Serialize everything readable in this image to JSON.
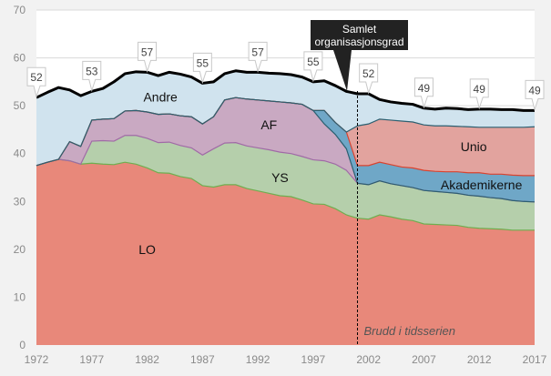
{
  "chart_data": {
    "type": "area",
    "stacked": true,
    "title": "",
    "xlabel": "",
    "ylabel": "",
    "xlim": [
      1972,
      2017
    ],
    "ylim": [
      0,
      70
    ],
    "yticks": [
      0,
      10,
      20,
      30,
      40,
      50,
      60,
      70
    ],
    "xticks": [
      1972,
      1977,
      1982,
      1987,
      1992,
      1997,
      2002,
      2007,
      2012,
      2017
    ],
    "grid": true,
    "x": [
      1972,
      1973,
      1974,
      1975,
      1976,
      1977,
      1978,
      1979,
      1980,
      1981,
      1982,
      1983,
      1984,
      1985,
      1986,
      1987,
      1988,
      1989,
      1990,
      1991,
      1992,
      1993,
      1994,
      1995,
      1996,
      1997,
      1998,
      1999,
      2000,
      2001,
      2002,
      2003,
      2004,
      2005,
      2006,
      2007,
      2008,
      2009,
      2010,
      2011,
      2012,
      2013,
      2014,
      2015,
      2016,
      2017
    ],
    "series": [
      {
        "name": "LO",
        "color": "#e8887a",
        "line": "#6fae4f",
        "values": [
          37.5,
          38.2,
          38.8,
          38.5,
          37.8,
          38.0,
          37.8,
          37.7,
          38.2,
          37.8,
          37.0,
          36.0,
          35.9,
          35.2,
          34.8,
          33.3,
          33.0,
          33.5,
          33.5,
          32.7,
          32.2,
          31.7,
          31.2,
          31.0,
          30.3,
          29.5,
          29.4,
          28.5,
          27.2,
          26.5,
          26.3,
          27.2,
          26.8,
          26.3,
          26.0,
          25.3,
          25.2,
          25.1,
          25.0,
          24.6,
          24.4,
          24.3,
          24.2,
          24.0,
          24.0,
          24.0
        ]
      },
      {
        "name": "YS",
        "color": "#b5cfab",
        "line": "#a06aa6",
        "values": [
          0,
          0,
          0,
          0,
          0,
          4.6,
          4.9,
          4.9,
          5.6,
          6.0,
          6.2,
          6.3,
          6.5,
          6.5,
          6.4,
          6.4,
          8.0,
          8.7,
          8.8,
          8.9,
          9.0,
          9.1,
          9.1,
          9.0,
          9.1,
          9.2,
          9.1,
          9.3,
          9.3,
          7.3,
          7.2,
          7.1,
          6.9,
          7.0,
          6.9,
          7.0,
          6.9,
          6.8,
          6.7,
          6.7,
          6.7,
          6.5,
          6.4,
          6.2,
          6.0,
          5.9
        ]
      },
      {
        "name": "AF",
        "color": "#c9a9c2",
        "line": "#2b5f70",
        "values": [
          0,
          0,
          0,
          4.0,
          3.7,
          4.4,
          4.5,
          4.7,
          5.1,
          5.2,
          5.5,
          5.9,
          5.9,
          6.2,
          6.5,
          6.5,
          6.7,
          9.0,
          9.4,
          9.8,
          10.0,
          10.2,
          10.5,
          10.6,
          10.9,
          10.3,
          7.7,
          6.2,
          4.5,
          0,
          0,
          0,
          0,
          0,
          0,
          0,
          0,
          0,
          0,
          0,
          0,
          0,
          0,
          0,
          0,
          0
        ]
      },
      {
        "name": "Akademikerne",
        "color": "#6fa7c7",
        "line": "#d9432f",
        "values": [
          0,
          0,
          0,
          0,
          0,
          0,
          0,
          0,
          0,
          0,
          0,
          0,
          0,
          0,
          0,
          0,
          0,
          0,
          0,
          0,
          0,
          0,
          0,
          0,
          0,
          0,
          2.8,
          2.5,
          3.5,
          3.7,
          4.0,
          3.9,
          4.0,
          3.9,
          4.1,
          4.2,
          4.2,
          4.3,
          4.5,
          4.7,
          4.9,
          4.9,
          5.1,
          5.3,
          5.4,
          5.5
        ]
      },
      {
        "name": "Unio",
        "color": "#e2a39e",
        "line": "#2b5f70",
        "values": [
          0,
          0,
          0,
          0,
          0,
          0,
          0,
          0,
          0,
          0,
          0,
          0,
          0,
          0,
          0,
          0,
          0,
          0,
          0,
          0,
          0,
          0,
          0,
          0,
          0,
          0,
          0,
          0,
          0,
          8.3,
          8.7,
          9.0,
          9.3,
          9.6,
          9.6,
          9.5,
          9.5,
          9.6,
          9.5,
          9.6,
          9.5,
          9.8,
          9.8,
          10.0,
          10.1,
          10.2
        ]
      },
      {
        "name": "Andre",
        "color": "#d0e3ee",
        "line": "#000000",
        "values": [
          14.2,
          14.6,
          15.0,
          10.8,
          10.6,
          6.0,
          6.4,
          7.7,
          7.8,
          8.1,
          8.3,
          8.1,
          8.7,
          8.7,
          8.3,
          8.5,
          7.3,
          5.5,
          5.6,
          5.6,
          5.8,
          5.8,
          5.9,
          5.9,
          5.7,
          6.0,
          6.2,
          7.7,
          8.5,
          6.7,
          6.3,
          4.1,
          3.8,
          3.7,
          3.7,
          3.5,
          3.5,
          3.7,
          3.7,
          3.6,
          3.8,
          3.8,
          3.7,
          3.7,
          3.5,
          3.4
        ]
      }
    ],
    "total": {
      "name": "Samlet organisasjonsgrad",
      "color": "#000000",
      "values": [
        51.7,
        52.8,
        53.8,
        53.3,
        52.1,
        53.0,
        53.6,
        55.0,
        56.7,
        57.1,
        57.0,
        56.3,
        57.0,
        56.6,
        56.0,
        54.7,
        55.0,
        56.7,
        57.3,
        57.0,
        57.0,
        56.8,
        56.7,
        56.5,
        56.0,
        55.0,
        55.2,
        54.2,
        53.0,
        52.5,
        52.5,
        51.3,
        50.8,
        50.5,
        50.3,
        49.5,
        49.3,
        49.5,
        49.4,
        49.2,
        49.3,
        49.3,
        49.2,
        49.2,
        49.0,
        49.0
      ]
    },
    "point_labels": [
      {
        "x": 1972,
        "text": "52"
      },
      {
        "x": 1977,
        "text": "53"
      },
      {
        "x": 1982,
        "text": "57"
      },
      {
        "x": 1987,
        "text": "55"
      },
      {
        "x": 1992,
        "text": "57"
      },
      {
        "x": 1997,
        "text": "55"
      },
      {
        "x": 2002,
        "text": "52"
      },
      {
        "x": 2007,
        "text": "49"
      },
      {
        "x": 2012,
        "text": "49"
      },
      {
        "x": 2017,
        "text": "49"
      }
    ],
    "callout": {
      "lines": [
        "Samlet",
        "organisasjonsgrad"
      ]
    },
    "break": {
      "x": 2001,
      "label": "Brudd i tidsserien"
    }
  }
}
